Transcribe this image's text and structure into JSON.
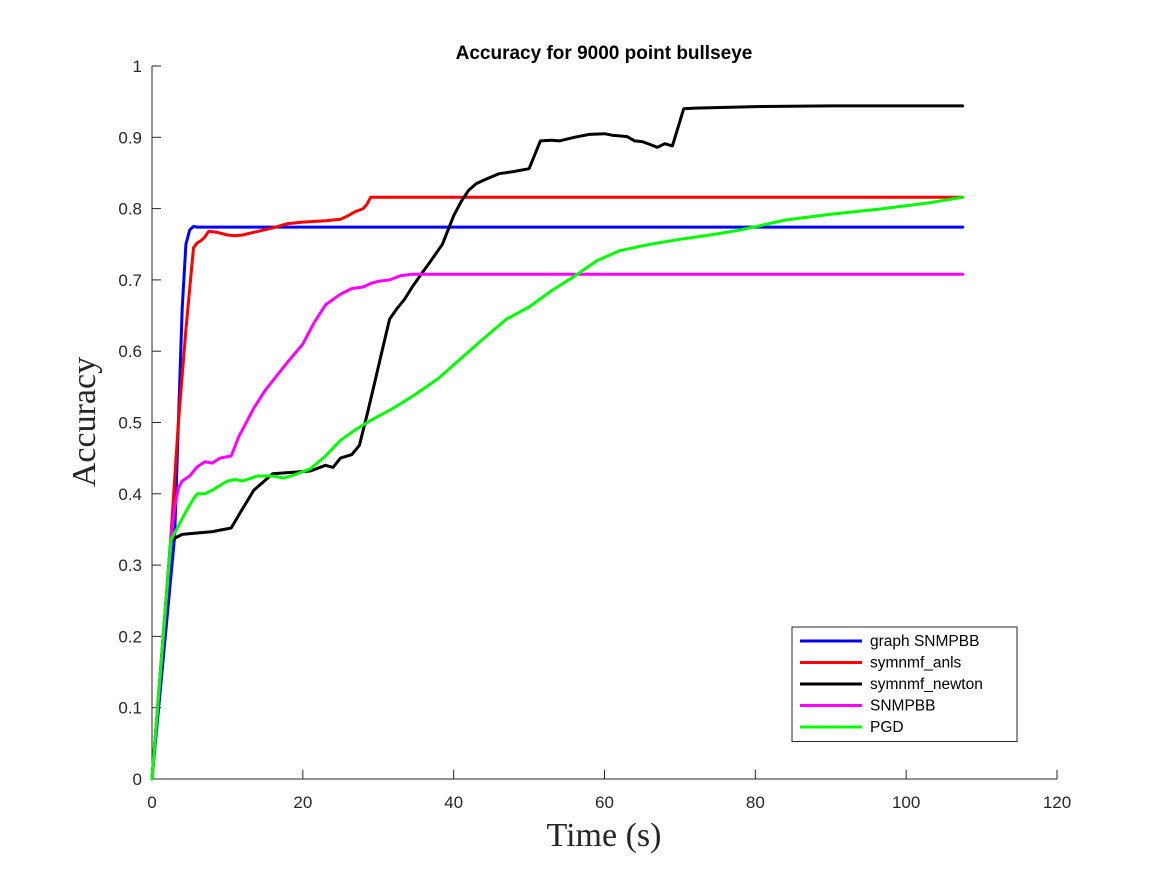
{
  "chart_data": {
    "type": "line",
    "title": "Accuracy for 9000 point bullseye",
    "xlabel": "Time (s)",
    "ylabel": "Accuracy",
    "xlim": [
      0,
      120
    ],
    "ylim": [
      0,
      1
    ],
    "xticks": [
      0,
      20,
      40,
      60,
      80,
      100,
      120
    ],
    "yticks": [
      0,
      0.1,
      0.2,
      0.3,
      0.4,
      0.5,
      0.6,
      0.7,
      0.8,
      0.9,
      1
    ],
    "grid": false,
    "legend_position": "bottom-right",
    "series": [
      {
        "name": "graph SNMPBB",
        "color": "#0000ff",
        "x": [
          0,
          3.0,
          4.0,
          4.5,
          5.0,
          5.5,
          6.0,
          107.5
        ],
        "y": [
          0,
          0.34,
          0.66,
          0.75,
          0.77,
          0.775,
          0.774,
          0.774
        ]
      },
      {
        "name": "symnmf_anls",
        "color": "#ff0000",
        "x": [
          0,
          2.5,
          3.5,
          4.5,
          5.5,
          6.0,
          6.5,
          7.0,
          7.5,
          8.5,
          10.0,
          11.0,
          12.0,
          14.0,
          16.0,
          18.0,
          20.0,
          23.0,
          25.0,
          26.0,
          27.0,
          28.0,
          28.5,
          29.0,
          107.5
        ],
        "y": [
          0,
          0.34,
          0.5,
          0.63,
          0.745,
          0.752,
          0.755,
          0.76,
          0.768,
          0.767,
          0.763,
          0.762,
          0.763,
          0.768,
          0.773,
          0.779,
          0.781,
          0.783,
          0.785,
          0.79,
          0.796,
          0.8,
          0.806,
          0.816,
          0.816
        ]
      },
      {
        "name": "symnmf_newton",
        "color": "#000000",
        "x": [
          0,
          2.5,
          4.0,
          8.0,
          10.5,
          11.5,
          13.5,
          16.0,
          18.5,
          21.0,
          23.0,
          24.0,
          25.0,
          26.5,
          27.5,
          28.5,
          29.5,
          30.5,
          31.5,
          32.5,
          33.5,
          34.5,
          35.5,
          37.0,
          38.5,
          40.0,
          41.0,
          42.0,
          43.0,
          44.0,
          46.0,
          48.0,
          50.0,
          51.5,
          53.0,
          54.0,
          56.0,
          58.0,
          60.0,
          61.0,
          62.0,
          63.0,
          64.0,
          65.0,
          66.0,
          67.0,
          68.0,
          69.0,
          70.5,
          72.0,
          80.0,
          90.0,
          107.5
        ],
        "y": [
          0,
          0.335,
          0.343,
          0.347,
          0.352,
          0.37,
          0.405,
          0.428,
          0.43,
          0.432,
          0.44,
          0.437,
          0.45,
          0.455,
          0.468,
          0.51,
          0.555,
          0.6,
          0.645,
          0.66,
          0.673,
          0.69,
          0.705,
          0.727,
          0.75,
          0.79,
          0.81,
          0.826,
          0.835,
          0.84,
          0.849,
          0.852,
          0.856,
          0.895,
          0.896,
          0.895,
          0.9,
          0.904,
          0.905,
          0.903,
          0.902,
          0.901,
          0.895,
          0.894,
          0.89,
          0.886,
          0.891,
          0.888,
          0.94,
          0.941,
          0.943,
          0.944,
          0.944
        ]
      },
      {
        "name": "SNMPBB",
        "color": "#ff00ff",
        "x": [
          0,
          2.5,
          3.0,
          3.5,
          4.0,
          5.0,
          6.0,
          7.0,
          8.0,
          9.0,
          10.5,
          11.5,
          13.5,
          15.0,
          16.5,
          18.0,
          20.0,
          21.5,
          23.0,
          25.0,
          26.5,
          28.0,
          29.0,
          30.0,
          31.5,
          33.0,
          34.5,
          107.5
        ],
        "y": [
          0,
          0.335,
          0.38,
          0.408,
          0.418,
          0.425,
          0.438,
          0.445,
          0.443,
          0.45,
          0.453,
          0.48,
          0.52,
          0.545,
          0.565,
          0.585,
          0.61,
          0.64,
          0.665,
          0.68,
          0.688,
          0.69,
          0.695,
          0.698,
          0.7,
          0.706,
          0.708,
          0.708
        ]
      },
      {
        "name": "PGD",
        "color": "#00ff00",
        "x": [
          0,
          2.5,
          3.5,
          4.5,
          5.5,
          6.0,
          7.0,
          8.0,
          10.0,
          11.0,
          12.0,
          14.0,
          16.0,
          17.5,
          19.0,
          21.0,
          23.0,
          25.0,
          27.0,
          29.0,
          32.0,
          35.0,
          38.0,
          41.0,
          44.0,
          47.0,
          50.0,
          53.0,
          56.0,
          59.0,
          62.0,
          66.0,
          70.0,
          74.0,
          78.0,
          84.0,
          90.0,
          97.0,
          103.0,
          107.5
        ],
        "y": [
          0,
          0.335,
          0.355,
          0.375,
          0.393,
          0.4,
          0.4,
          0.405,
          0.418,
          0.42,
          0.418,
          0.425,
          0.425,
          0.422,
          0.427,
          0.435,
          0.453,
          0.475,
          0.49,
          0.503,
          0.52,
          0.54,
          0.562,
          0.59,
          0.618,
          0.645,
          0.662,
          0.685,
          0.705,
          0.727,
          0.741,
          0.75,
          0.757,
          0.763,
          0.77,
          0.784,
          0.792,
          0.8,
          0.808,
          0.816
        ]
      }
    ]
  }
}
